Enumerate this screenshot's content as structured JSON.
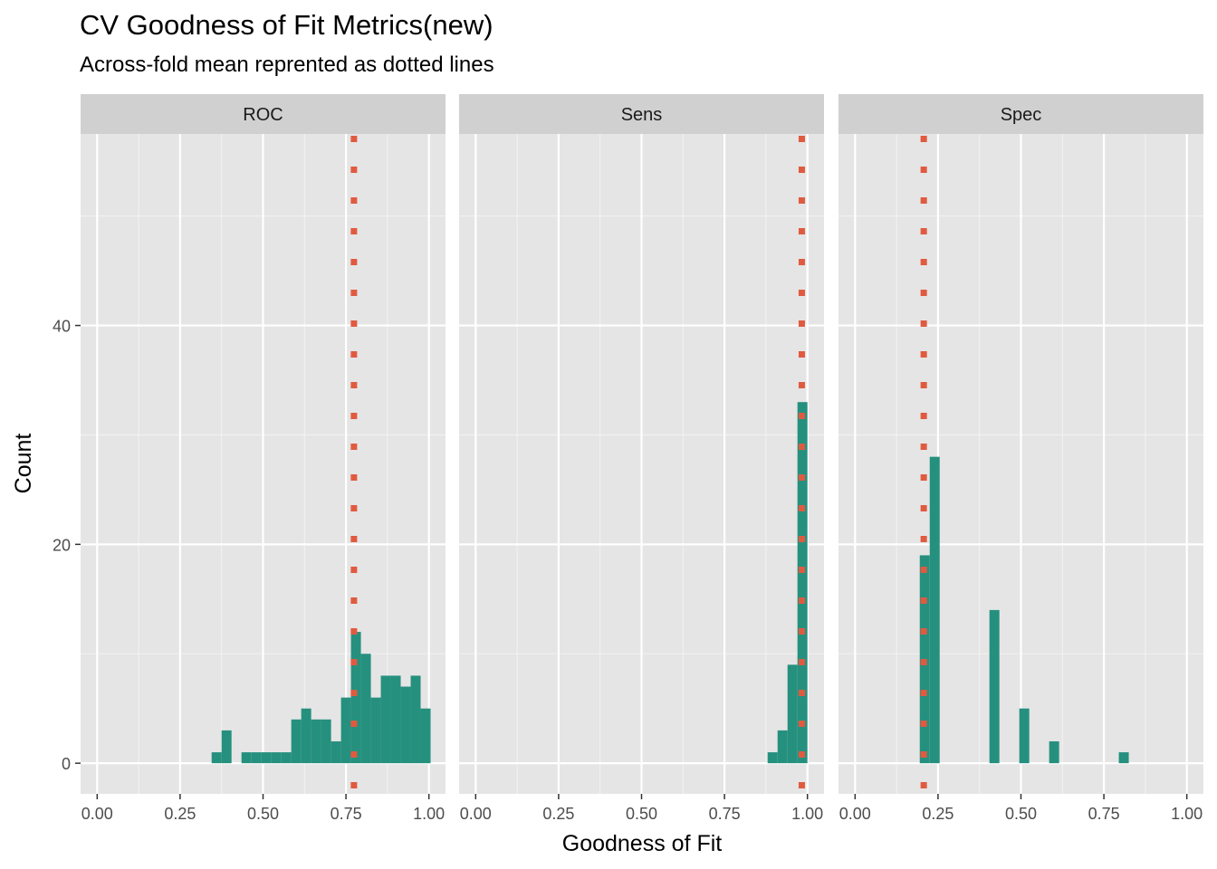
{
  "title": "CV Goodness of Fit Metrics(new)",
  "subtitle": "Across-fold mean reprented as dotted lines",
  "chart_data": {
    "type": "bar",
    "subtype": "faceted-histogram",
    "xlabel": "Goodness of Fit",
    "ylabel": "Count",
    "xlim": [
      0,
      1
    ],
    "ylim": [
      -2.8,
      57.5
    ],
    "x_ticks": [
      0,
      0.25,
      0.5,
      0.75,
      1
    ],
    "x_tick_labels": [
      "0.00",
      "0.25",
      "0.50",
      "0.75",
      "1.00"
    ],
    "y_ticks": [
      0,
      20,
      40
    ],
    "y_tick_labels": [
      "0",
      "20",
      "40"
    ],
    "bin_width": 0.03,
    "bar_color": "#26907e",
    "mean_line_color": "#e05a40",
    "panel_bg": "#e5e5e5",
    "strip_bg": "#d0d0d0",
    "legend": "none",
    "facets": [
      {
        "label": "ROC",
        "mean": 0.774,
        "bins": [
          {
            "x": 0.36,
            "count": 1
          },
          {
            "x": 0.39,
            "count": 3
          },
          {
            "x": 0.45,
            "count": 1
          },
          {
            "x": 0.48,
            "count": 1
          },
          {
            "x": 0.51,
            "count": 1
          },
          {
            "x": 0.54,
            "count": 1
          },
          {
            "x": 0.57,
            "count": 1
          },
          {
            "x": 0.6,
            "count": 4
          },
          {
            "x": 0.63,
            "count": 5
          },
          {
            "x": 0.66,
            "count": 4
          },
          {
            "x": 0.69,
            "count": 4
          },
          {
            "x": 0.72,
            "count": 2
          },
          {
            "x": 0.75,
            "count": 6
          },
          {
            "x": 0.78,
            "count": 12
          },
          {
            "x": 0.81,
            "count": 10
          },
          {
            "x": 0.84,
            "count": 6
          },
          {
            "x": 0.87,
            "count": 8
          },
          {
            "x": 0.9,
            "count": 8
          },
          {
            "x": 0.93,
            "count": 7
          },
          {
            "x": 0.96,
            "count": 8
          },
          {
            "x": 0.99,
            "count": 5
          }
        ]
      },
      {
        "label": "Sens",
        "mean": 0.983,
        "bins": [
          {
            "x": 0.895,
            "count": 1
          },
          {
            "x": 0.925,
            "count": 3
          },
          {
            "x": 0.955,
            "count": 9
          },
          {
            "x": 0.985,
            "count": 33
          }
        ]
      },
      {
        "label": "Spec",
        "mean": 0.207,
        "bins": [
          {
            "x": 0.21,
            "count": 19
          },
          {
            "x": 0.24,
            "count": 28
          },
          {
            "x": 0.42,
            "count": 14
          },
          {
            "x": 0.51,
            "count": 5
          },
          {
            "x": 0.6,
            "count": 2
          },
          {
            "x": 0.81,
            "count": 1
          }
        ]
      }
    ]
  }
}
